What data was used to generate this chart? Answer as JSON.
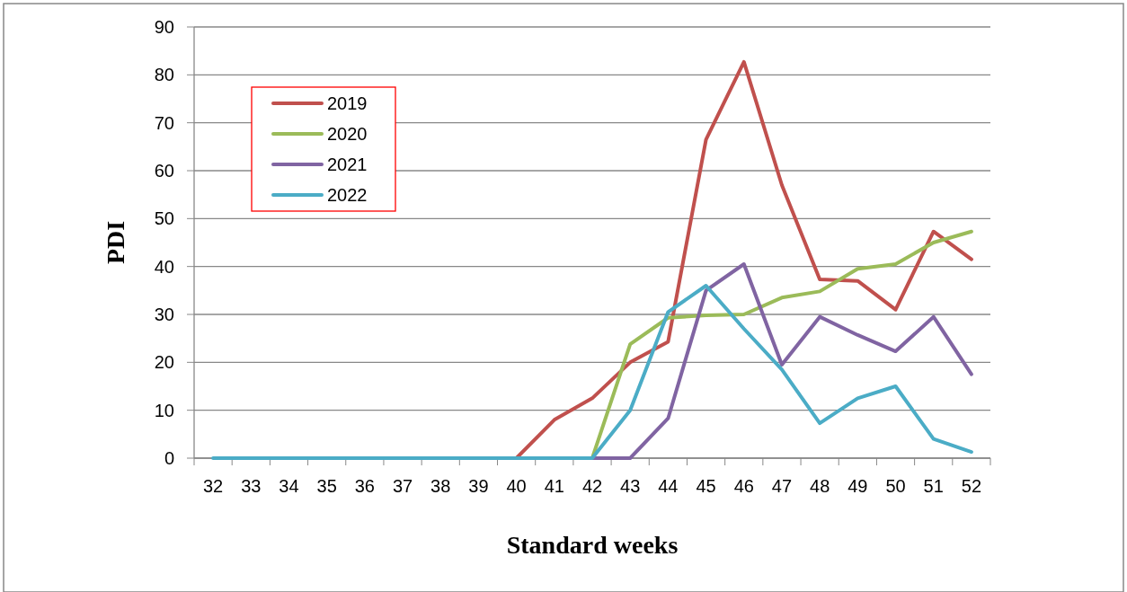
{
  "chart_data": {
    "type": "line",
    "xlabel": "Standard weeks",
    "ylabel": "PDI",
    "categories": [
      "32",
      "33",
      "34",
      "35",
      "36",
      "37",
      "38",
      "39",
      "40",
      "41",
      "42",
      "43",
      "44",
      "45",
      "46",
      "47",
      "48",
      "49",
      "50",
      "51",
      "52"
    ],
    "series": [
      {
        "name": "2019",
        "color": "#c0504d",
        "values": [
          null,
          null,
          null,
          null,
          null,
          null,
          null,
          0,
          0,
          8,
          12.5,
          20,
          24.3,
          66.5,
          82.7,
          57,
          37.3,
          37,
          31,
          47.3,
          41.5
        ]
      },
      {
        "name": "2020",
        "color": "#9bbb59",
        "values": [
          null,
          null,
          null,
          null,
          null,
          null,
          null,
          null,
          null,
          0,
          0,
          23.8,
          29.3,
          29.8,
          30,
          33.5,
          34.8,
          39.5,
          40.5,
          45,
          47.3
        ]
      },
      {
        "name": "2021",
        "color": "#8064a2",
        "values": [
          null,
          null,
          null,
          null,
          null,
          null,
          null,
          null,
          null,
          0,
          0,
          0,
          8.3,
          35,
          40.5,
          19.5,
          29.5,
          25.7,
          22.3,
          29.5,
          17.5
        ]
      },
      {
        "name": "2022",
        "color": "#4bacc6",
        "values": [
          0,
          0,
          0,
          0,
          0,
          0,
          0,
          0,
          0,
          0,
          0,
          10,
          30.5,
          36,
          27,
          18.5,
          7.3,
          12.5,
          15,
          4,
          1.3
        ]
      }
    ],
    "ylim": [
      0,
      90
    ],
    "yticks": [
      0,
      10,
      20,
      30,
      40,
      50,
      60,
      70,
      80,
      90
    ],
    "grid": "y",
    "legend": "top left",
    "marker": "none",
    "line_style": "solid"
  }
}
